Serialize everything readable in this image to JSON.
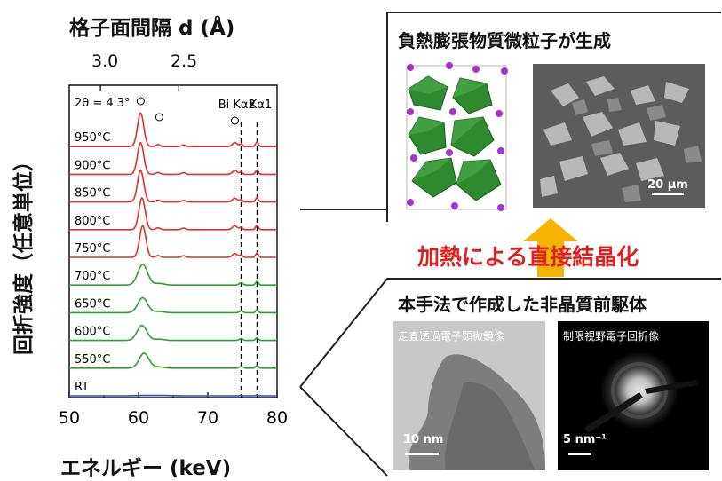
{
  "top_axis": {
    "title": "格子面間隔 d (Å)",
    "ticks": [
      "3.0",
      "2.5"
    ]
  },
  "y_axis_title": "回折強度（任意単位）",
  "chart_data": {
    "type": "line",
    "xlabel": "エネルギー (keV)",
    "xlim": [
      50,
      80
    ],
    "xticks": [
      50,
      60,
      70,
      80
    ],
    "top_xlabel": "格子面間隔 d (Å)",
    "top_ticks": [
      "3.0",
      "2.5"
    ],
    "ylabel": "回折強度（任意単位）",
    "angle_label": "2θ = 4.3°",
    "line_labels": [
      "Bi Kα2",
      "Kα1"
    ],
    "line_positions": [
      74.8,
      77.1
    ],
    "grid": false,
    "series": [
      {
        "name": "950°C",
        "color": "#e03030",
        "kind": "crystal",
        "peak": 60.3,
        "height": 0.9
      },
      {
        "name": "900°C",
        "color": "#e03030",
        "kind": "crystal",
        "peak": 60.3,
        "height": 0.85
      },
      {
        "name": "850°C",
        "color": "#e03030",
        "kind": "crystal",
        "peak": 60.3,
        "height": 0.85
      },
      {
        "name": "800°C",
        "color": "#e03030",
        "kind": "crystal",
        "peak": 60.5,
        "height": 0.85
      },
      {
        "name": "750°C",
        "color": "#e03030",
        "kind": "crystal",
        "peak": 60.6,
        "height": 0.85
      },
      {
        "name": "700°C",
        "color": "#2ea02e",
        "kind": "intermediate",
        "peak": 60.6,
        "height": 0.55
      },
      {
        "name": "650°C",
        "color": "#2ea02e",
        "kind": "intermediate",
        "peak": 60.6,
        "height": 0.4
      },
      {
        "name": "600°C",
        "color": "#2ea02e",
        "kind": "intermediate",
        "peak": 60.5,
        "height": 0.4
      },
      {
        "name": "550°C",
        "color": "#2ea02e",
        "kind": "intermediate",
        "peak": 60.8,
        "height": 0.4
      },
      {
        "name": "RT",
        "color": "#2a4fd0",
        "kind": "amorphous",
        "peak": 63.0,
        "height": 0.1
      }
    ]
  },
  "right": {
    "top_title": "負熱膨張物質微粒子が生成",
    "sem_scale": "20 µm",
    "arrow_label_red": "加熱による直接結晶化",
    "bottom_title": "本手法で作成した非晶質前駆体",
    "tem_title": "走査透過電子顕微鏡像",
    "tem_scale": "10 nm",
    "diff_title": "制限視野電子回折像",
    "diff_scale": "5 nm⁻¹",
    "colors": {
      "arrow": "#f4b400",
      "red_text": "#e02020",
      "octahedra": "#2e8a2e",
      "atoms": "#a234c8"
    }
  }
}
